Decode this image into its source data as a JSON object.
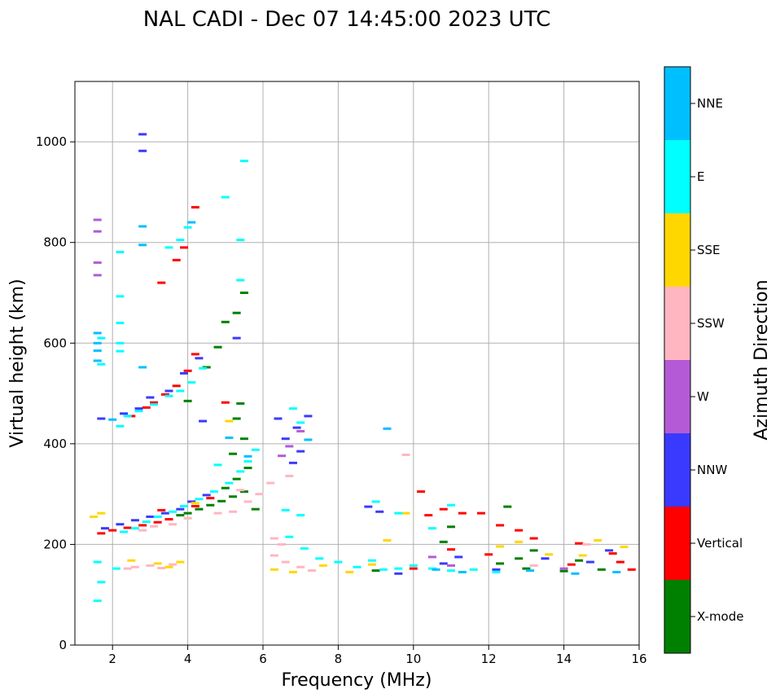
{
  "chart_data": {
    "type": "scatter",
    "title": "NAL CADI - Dec 07 14:45:00 2023 UTC",
    "xlabel": "Frequency (MHz)",
    "ylabel": "Virtual height (km)",
    "xlim": [
      1,
      16
    ],
    "ylim": [
      0,
      1120
    ],
    "xticks": [
      2,
      4,
      6,
      8,
      10,
      12,
      14,
      16
    ],
    "yticks": [
      0,
      200,
      400,
      600,
      800,
      1000
    ],
    "grid": true,
    "colorbar": {
      "label": "Azimuth Direction",
      "categories": [
        "X-mode",
        "Vertical",
        "NNW",
        "W",
        "SSW",
        "SSE",
        "E",
        "NNE"
      ],
      "colors": [
        "#008000",
        "#ff0000",
        "#3a3aff",
        "#b45ad6",
        "#ffb6c1",
        "#ffd700",
        "#00ffff",
        "#00bfff"
      ]
    },
    "series": [
      {
        "name": "X-mode",
        "points": [
          [
            3.8,
            258
          ],
          [
            4.0,
            262
          ],
          [
            4.3,
            270
          ],
          [
            4.6,
            278
          ],
          [
            4.9,
            286
          ],
          [
            5.2,
            295
          ],
          [
            5.5,
            305
          ],
          [
            5.0,
            312
          ],
          [
            5.3,
            330
          ],
          [
            5.6,
            352
          ],
          [
            5.2,
            380
          ],
          [
            5.5,
            410
          ],
          [
            5.3,
            450
          ],
          [
            5.4,
            480
          ],
          [
            4.5,
            552
          ],
          [
            4.8,
            592
          ],
          [
            5.0,
            642
          ],
          [
            5.3,
            660
          ],
          [
            5.5,
            700
          ],
          [
            4.0,
            485
          ],
          [
            12.3,
            162
          ],
          [
            12.8,
            172
          ],
          [
            13.2,
            188
          ],
          [
            13.0,
            152
          ],
          [
            14.4,
            168
          ],
          [
            15.0,
            150
          ],
          [
            14.0,
            147
          ],
          [
            11.0,
            235
          ],
          [
            10.8,
            205
          ],
          [
            12.5,
            275
          ],
          [
            9.0,
            148
          ],
          [
            5.8,
            270
          ]
        ]
      },
      {
        "name": "Vertical",
        "points": [
          [
            1.7,
            222
          ],
          [
            2.0,
            228
          ],
          [
            2.4,
            233
          ],
          [
            2.8,
            238
          ],
          [
            3.2,
            244
          ],
          [
            3.5,
            250
          ],
          [
            3.3,
            268
          ],
          [
            4.2,
            276
          ],
          [
            4.6,
            292
          ],
          [
            2.5,
            455
          ],
          [
            2.9,
            472
          ],
          [
            3.1,
            482
          ],
          [
            3.4,
            498
          ],
          [
            3.7,
            515
          ],
          [
            4.0,
            545
          ],
          [
            4.2,
            578
          ],
          [
            3.7,
            765
          ],
          [
            3.9,
            790
          ],
          [
            4.2,
            870
          ],
          [
            3.3,
            720
          ],
          [
            10.4,
            258
          ],
          [
            10.8,
            270
          ],
          [
            11.3,
            262
          ],
          [
            11.8,
            262
          ],
          [
            12.3,
            238
          ],
          [
            12.8,
            228
          ],
          [
            13.2,
            212
          ],
          [
            14.4,
            202
          ],
          [
            15.3,
            182
          ],
          [
            15.5,
            165
          ],
          [
            15.8,
            150
          ],
          [
            14.2,
            160
          ],
          [
            10.2,
            305
          ],
          [
            11.0,
            190
          ],
          [
            10.0,
            152
          ],
          [
            12.0,
            180
          ],
          [
            5.0,
            482
          ]
        ]
      },
      {
        "name": "NNW",
        "points": [
          [
            1.8,
            232
          ],
          [
            2.2,
            240
          ],
          [
            2.6,
            248
          ],
          [
            3.0,
            255
          ],
          [
            3.4,
            262
          ],
          [
            3.8,
            270
          ],
          [
            4.1,
            285
          ],
          [
            4.5,
            298
          ],
          [
            2.3,
            460
          ],
          [
            2.7,
            470
          ],
          [
            3.0,
            492
          ],
          [
            3.5,
            505
          ],
          [
            3.9,
            540
          ],
          [
            4.3,
            570
          ],
          [
            6.8,
            362
          ],
          [
            7.0,
            385
          ],
          [
            6.6,
            410
          ],
          [
            6.9,
            432
          ],
          [
            7.2,
            455
          ],
          [
            5.3,
            610
          ],
          [
            6.4,
            450
          ],
          [
            4.4,
            445
          ],
          [
            8.8,
            275
          ],
          [
            9.1,
            265
          ],
          [
            10.8,
            162
          ],
          [
            11.2,
            175
          ],
          [
            12.2,
            150
          ],
          [
            13.5,
            172
          ],
          [
            14.7,
            165
          ],
          [
            15.2,
            188
          ],
          [
            9.6,
            142
          ],
          [
            2.8,
            982
          ],
          [
            2.8,
            1015
          ],
          [
            1.7,
            450
          ]
        ]
      },
      {
        "name": "W",
        "points": [
          [
            1.6,
            822
          ],
          [
            1.6,
            845
          ],
          [
            1.6,
            735
          ],
          [
            1.6,
            760
          ],
          [
            6.5,
            376
          ],
          [
            6.7,
            395
          ],
          [
            7.0,
            425
          ],
          [
            10.5,
            175
          ],
          [
            11.0,
            158
          ],
          [
            14.0,
            152
          ]
        ]
      },
      {
        "name": "SSW",
        "points": [
          [
            2.4,
            152
          ],
          [
            2.6,
            155
          ],
          [
            3.0,
            158
          ],
          [
            3.3,
            153
          ],
          [
            3.6,
            160
          ],
          [
            5.2,
            265
          ],
          [
            5.6,
            285
          ],
          [
            5.9,
            300
          ],
          [
            6.3,
            178
          ],
          [
            6.6,
            165
          ],
          [
            7.0,
            155
          ],
          [
            7.3,
            148
          ],
          [
            6.2,
            322
          ],
          [
            6.7,
            336
          ],
          [
            6.3,
            212
          ],
          [
            6.5,
            200
          ],
          [
            2.8,
            228
          ],
          [
            3.1,
            236
          ],
          [
            3.6,
            240
          ],
          [
            4.0,
            252
          ],
          [
            4.8,
            262
          ],
          [
            9.8,
            378
          ],
          [
            13.2,
            158
          ],
          [
            14.6,
            200
          ],
          [
            5.4,
            308
          ]
        ]
      },
      {
        "name": "SSE",
        "points": [
          [
            1.5,
            255
          ],
          [
            1.7,
            262
          ],
          [
            3.2,
            162
          ],
          [
            3.5,
            155
          ],
          [
            3.8,
            165
          ],
          [
            6.3,
            150
          ],
          [
            6.8,
            145
          ],
          [
            7.6,
            158
          ],
          [
            8.3,
            145
          ],
          [
            8.9,
            160
          ],
          [
            9.3,
            208
          ],
          [
            9.8,
            262
          ],
          [
            12.3,
            196
          ],
          [
            12.8,
            205
          ],
          [
            13.6,
            180
          ],
          [
            14.5,
            178
          ],
          [
            14.9,
            208
          ],
          [
            15.6,
            195
          ],
          [
            2.5,
            168
          ],
          [
            4.2,
            282
          ],
          [
            5.1,
            445
          ]
        ]
      },
      {
        "name": "E",
        "points": [
          [
            1.6,
            88
          ],
          [
            1.7,
            125
          ],
          [
            1.6,
            165
          ],
          [
            2.1,
            152
          ],
          [
            2.3,
            225
          ],
          [
            2.6,
            232
          ],
          [
            2.9,
            245
          ],
          [
            3.2,
            255
          ],
          [
            3.6,
            265
          ],
          [
            3.9,
            276
          ],
          [
            4.3,
            290
          ],
          [
            4.7,
            305
          ],
          [
            5.1,
            322
          ],
          [
            5.4,
            345
          ],
          [
            5.6,
            365
          ],
          [
            5.8,
            388
          ],
          [
            4.8,
            358
          ],
          [
            2.2,
            435
          ],
          [
            2.4,
            455
          ],
          [
            2.7,
            465
          ],
          [
            3.1,
            478
          ],
          [
            3.5,
            495
          ],
          [
            3.8,
            505
          ],
          [
            4.1,
            522
          ],
          [
            4.4,
            550
          ],
          [
            2.2,
            584
          ],
          [
            2.2,
            600
          ],
          [
            2.2,
            640
          ],
          [
            2.2,
            693
          ],
          [
            2.2,
            781
          ],
          [
            3.5,
            790
          ],
          [
            3.8,
            805
          ],
          [
            4.0,
            830
          ],
          [
            5.4,
            805
          ],
          [
            5.0,
            890
          ],
          [
            5.5,
            962
          ],
          [
            5.4,
            725
          ],
          [
            6.8,
            470
          ],
          [
            7.0,
            442
          ],
          [
            6.6,
            268
          ],
          [
            7.0,
            258
          ],
          [
            6.7,
            215
          ],
          [
            7.1,
            192
          ],
          [
            7.5,
            172
          ],
          [
            8.0,
            165
          ],
          [
            8.5,
            155
          ],
          [
            8.9,
            168
          ],
          [
            9.2,
            150
          ],
          [
            9.6,
            152
          ],
          [
            10.0,
            158
          ],
          [
            10.5,
            152
          ],
          [
            11.0,
            148
          ],
          [
            11.6,
            150
          ],
          [
            12.2,
            145
          ],
          [
            9.0,
            285
          ],
          [
            9.6,
            262
          ],
          [
            10.5,
            232
          ],
          [
            11.0,
            278
          ],
          [
            1.7,
            558
          ],
          [
            1.7,
            610
          ]
        ]
      },
      {
        "name": "NNE",
        "points": [
          [
            1.6,
            620
          ],
          [
            1.6,
            600
          ],
          [
            1.6,
            585
          ],
          [
            1.6,
            565
          ],
          [
            2.8,
            832
          ],
          [
            2.8,
            795
          ],
          [
            2.8,
            552
          ],
          [
            4.1,
            840
          ],
          [
            5.1,
            412
          ],
          [
            5.6,
            375
          ],
          [
            7.2,
            408
          ],
          [
            9.3,
            430
          ],
          [
            10.6,
            150
          ],
          [
            11.3,
            145
          ],
          [
            13.1,
            148
          ],
          [
            14.3,
            142
          ],
          [
            15.4,
            145
          ],
          [
            2.0,
            448
          ]
        ]
      }
    ]
  }
}
